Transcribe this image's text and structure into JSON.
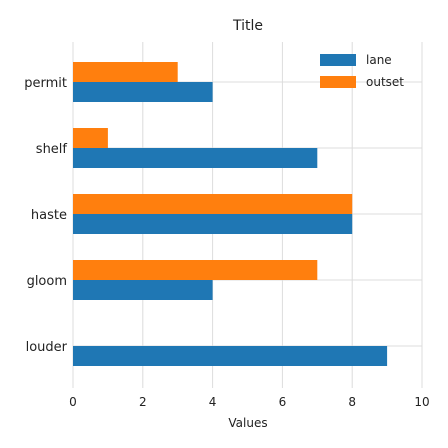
{
  "chart_data": {
    "type": "bar",
    "orientation": "horizontal",
    "title": "Title",
    "xlabel": "Values",
    "ylabel": "",
    "xlim": [
      0,
      10
    ],
    "xticks": [
      0,
      2,
      4,
      6,
      8,
      10
    ],
    "categories": [
      "permit",
      "shelf",
      "haste",
      "gloom",
      "louder"
    ],
    "series": [
      {
        "name": "lane",
        "color": "#1f77b4",
        "values": [
          4,
          7,
          8,
          4,
          9
        ]
      },
      {
        "name": "outset",
        "color": "#ff7f0e",
        "values": [
          3,
          1,
          8,
          7,
          0
        ]
      }
    ],
    "grid": true,
    "legend_position": "top-right"
  }
}
